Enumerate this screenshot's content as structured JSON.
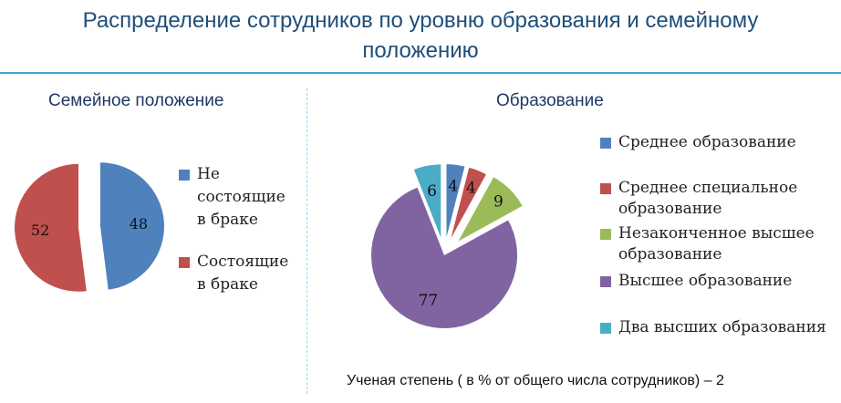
{
  "title_line1": "Распределение сотрудников по уровню образования и семейному",
  "title_line2": "положению",
  "footer": "Ученая степень ( в % от общего числа сотрудников) – 2",
  "chart_data": [
    {
      "type": "pie",
      "title": "Семейное положение",
      "slices": [
        {
          "label": "Не состоящие в браке",
          "value": 48,
          "color": "#4f81bd"
        },
        {
          "label": "Состоящие в браке",
          "value": 52,
          "color": "#c0504d"
        }
      ],
      "legend_position": "right"
    },
    {
      "type": "pie",
      "title": "Образование",
      "slices": [
        {
          "label": "Среднее образование",
          "value": 4,
          "color": "#4f81bd"
        },
        {
          "label": "Среднее специальное образование",
          "value": 4,
          "color": "#c0504d"
        },
        {
          "label": "Незаконченное высшее образование",
          "value": 9,
          "color": "#9bbb59"
        },
        {
          "label": "Высшее образование",
          "value": 77,
          "color": "#8064a2"
        },
        {
          "label": "Два высших образования",
          "value": 6,
          "color": "#4bacc6"
        }
      ],
      "legend_position": "right"
    }
  ]
}
